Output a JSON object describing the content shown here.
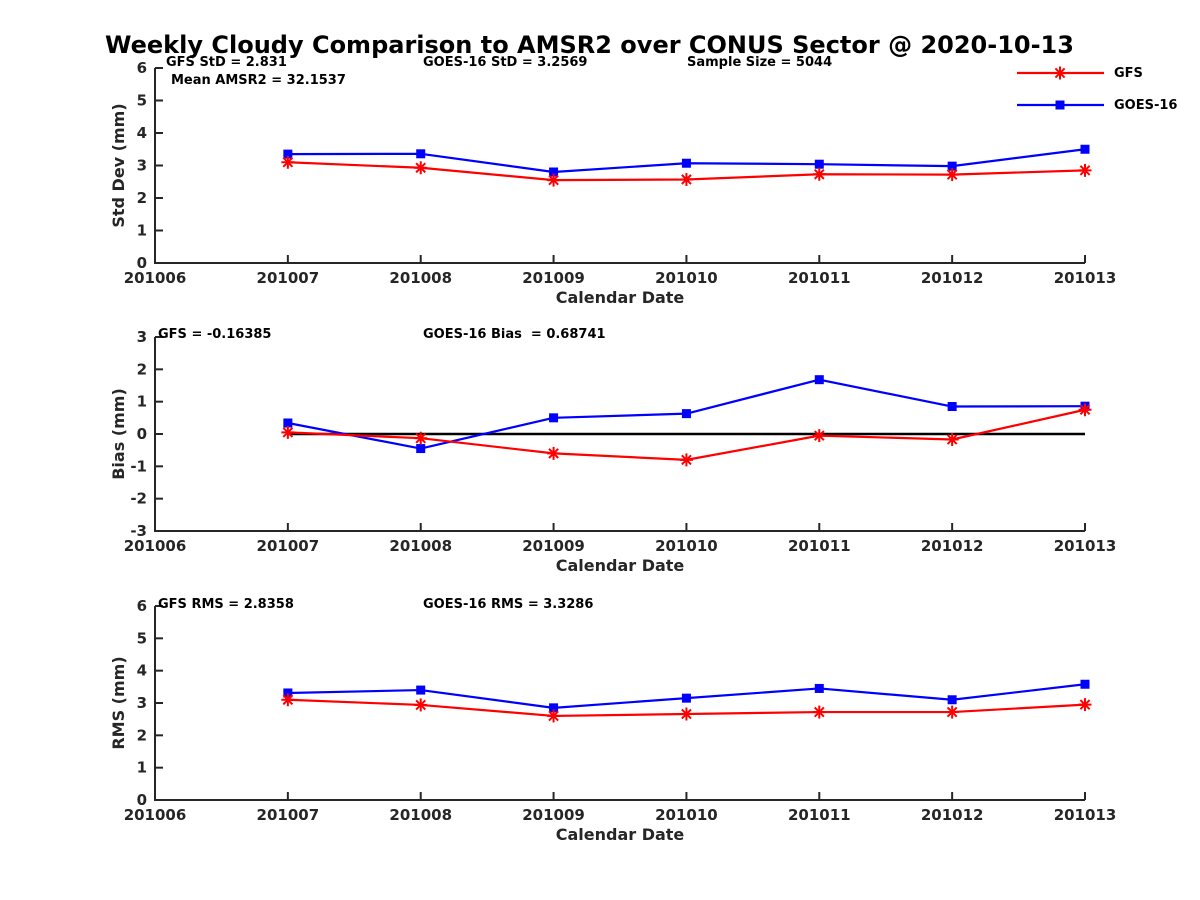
{
  "title": "Weekly Cloudy Comparison to AMSR2 over CONUS Sector @ 2020-10-13",
  "colors": {
    "gfs": "#ff0000",
    "goes16": "#0000ff",
    "axis": "#262626",
    "zero_line": "#000000"
  },
  "legend": [
    {
      "label": "GFS",
      "color": "#ff0000",
      "marker": "asterisk"
    },
    {
      "label": "GOES-16",
      "color": "#0000ff",
      "marker": "square"
    }
  ],
  "chart_data": [
    {
      "type": "line",
      "title": "",
      "xlabel": "Calendar Date",
      "ylabel": "Std Dev (mm)",
      "xlim": [
        201006,
        201013
      ],
      "ylim": [
        0,
        6
      ],
      "xticks": [
        "201006",
        "201007",
        "201008",
        "201009",
        "201010",
        "201011",
        "201012",
        "201013"
      ],
      "yticks": [
        0,
        1,
        2,
        3,
        4,
        5,
        6
      ],
      "grid": false,
      "zero_line": false,
      "x": [
        201007,
        201008,
        201009,
        201010,
        201011,
        201012,
        201013
      ],
      "series": [
        {
          "name": "GFS",
          "color": "#ff0000",
          "marker": "asterisk",
          "values": [
            3.1,
            2.93,
            2.55,
            2.57,
            2.73,
            2.72,
            2.85
          ]
        },
        {
          "name": "GOES-16",
          "color": "#0000ff",
          "marker": "square",
          "values": [
            3.35,
            3.36,
            2.8,
            3.07,
            3.04,
            2.98,
            3.5
          ]
        }
      ],
      "annotations": [
        {
          "text": "GFS StD = 2.831"
        },
        {
          "text": "Mean AMSR2 = 32.1537"
        },
        {
          "text": "GOES-16 StD = 3.2569"
        },
        {
          "text": "Sample Size = 5044"
        }
      ],
      "legend_position": "upper right outside"
    },
    {
      "type": "line",
      "title": "",
      "xlabel": "Calendar Date",
      "ylabel": "Bias (mm)",
      "xlim": [
        201006,
        201013
      ],
      "ylim": [
        -3,
        3
      ],
      "xticks": [
        "201006",
        "201007",
        "201008",
        "201009",
        "201010",
        "201011",
        "201012",
        "201013"
      ],
      "yticks": [
        -3,
        -2,
        -1,
        0,
        1,
        2,
        3
      ],
      "grid": false,
      "zero_line": true,
      "x": [
        201007,
        201008,
        201009,
        201010,
        201011,
        201012,
        201013
      ],
      "series": [
        {
          "name": "GFS",
          "color": "#ff0000",
          "marker": "asterisk",
          "values": [
            0.05,
            -0.13,
            -0.6,
            -0.8,
            -0.05,
            -0.17,
            0.75
          ]
        },
        {
          "name": "GOES-16",
          "color": "#0000ff",
          "marker": "square",
          "values": [
            0.34,
            -0.45,
            0.5,
            0.63,
            1.68,
            0.85,
            0.86
          ]
        }
      ],
      "annotations": [
        {
          "text": "GFS = -0.16385"
        },
        {
          "text": "GOES-16 Bias  = 0.68741"
        }
      ]
    },
    {
      "type": "line",
      "title": "",
      "xlabel": "Calendar Date",
      "ylabel": "RMS (mm)",
      "xlim": [
        201006,
        201013
      ],
      "ylim": [
        0,
        6
      ],
      "xticks": [
        "201006",
        "201007",
        "201008",
        "201009",
        "201010",
        "201011",
        "201012",
        "201013"
      ],
      "yticks": [
        0,
        1,
        2,
        3,
        4,
        5,
        6
      ],
      "grid": false,
      "zero_line": false,
      "x": [
        201007,
        201008,
        201009,
        201010,
        201011,
        201012,
        201013
      ],
      "series": [
        {
          "name": "GFS",
          "color": "#ff0000",
          "marker": "asterisk",
          "values": [
            3.1,
            2.94,
            2.6,
            2.66,
            2.72,
            2.72,
            2.95
          ]
        },
        {
          "name": "GOES-16",
          "color": "#0000ff",
          "marker": "square",
          "values": [
            3.31,
            3.4,
            2.85,
            3.15,
            3.45,
            3.1,
            3.58
          ]
        }
      ],
      "annotations": [
        {
          "text": "GFS RMS = 2.8358"
        },
        {
          "text": "GOES-16 RMS = 3.3286"
        }
      ]
    }
  ]
}
